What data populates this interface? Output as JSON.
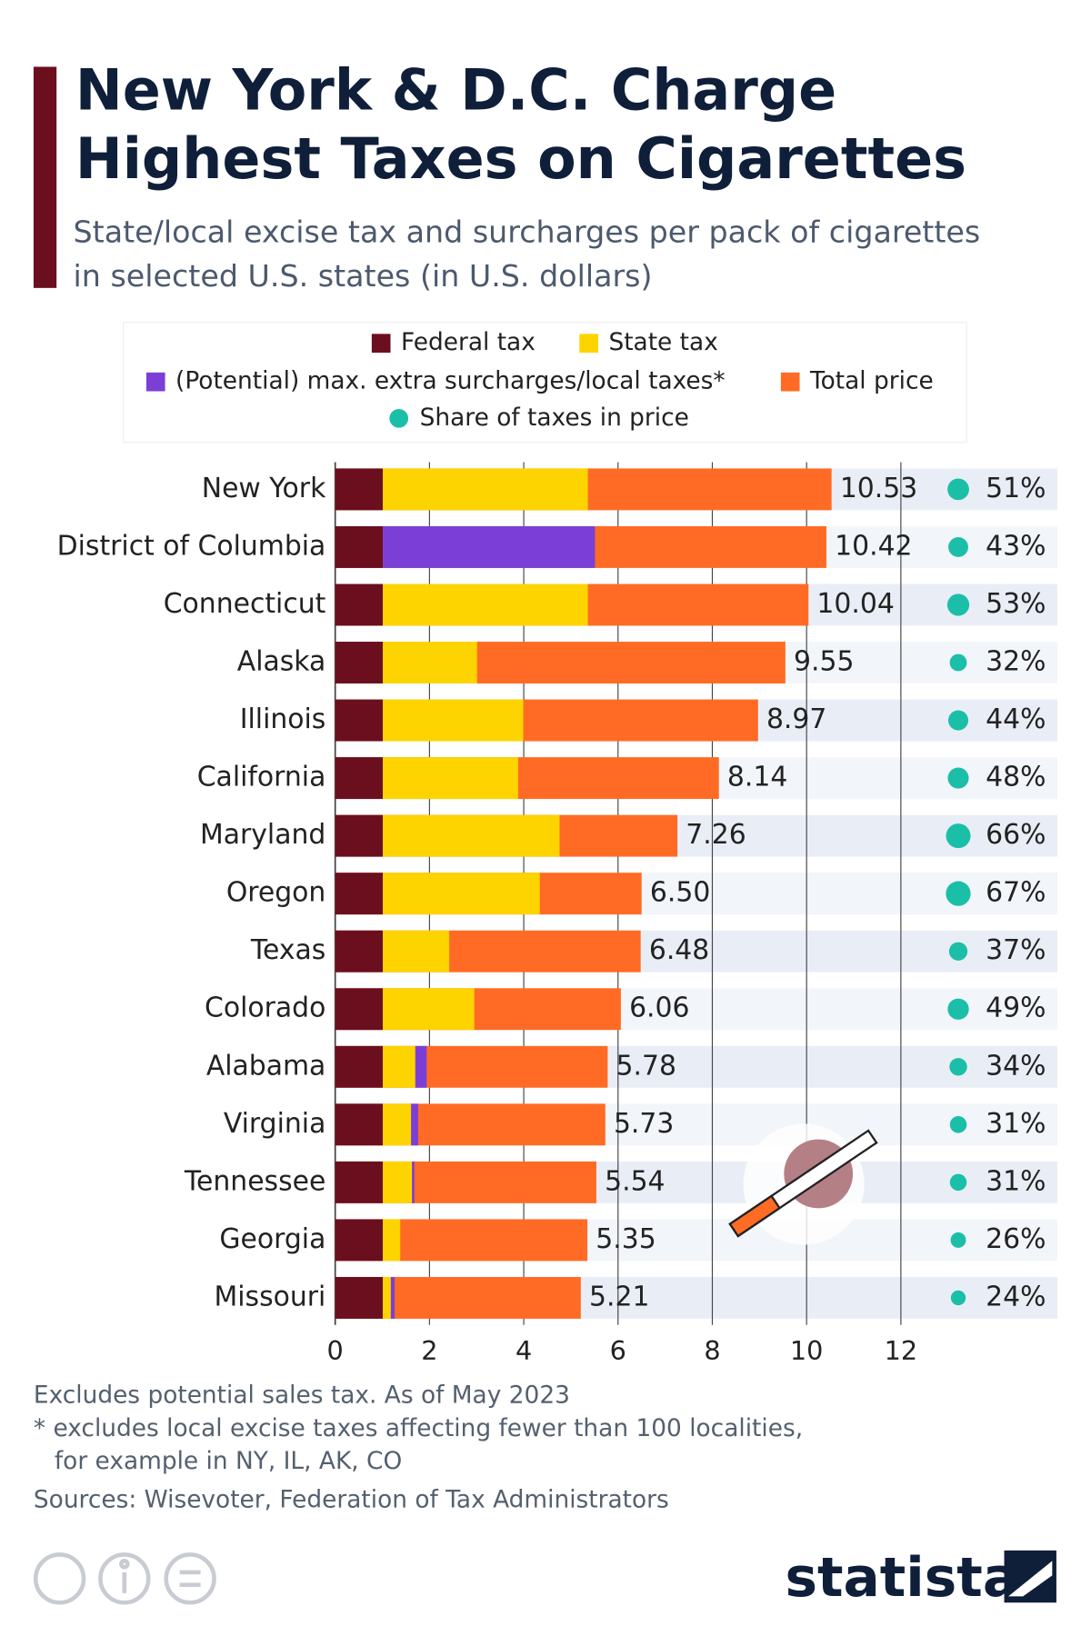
{
  "chart_data": {
    "type": "bar",
    "orientation": "horizontal",
    "title": [
      "New York & D.C. Charge",
      "Highest Taxes on Cigarettes"
    ],
    "subtitle": [
      "State/local excise tax and surcharges per pack of cigarettes",
      "in selected U.S. states (in U.S. dollars)"
    ],
    "categories": [
      "New York",
      "District of Columbia",
      "Connecticut",
      "Alaska",
      "Illinois",
      "California",
      "Maryland",
      "Oregon",
      "Texas",
      "Colorado",
      "Alabama",
      "Virginia",
      "Tennessee",
      "Georgia",
      "Missouri"
    ],
    "series": [
      {
        "name": "Federal tax",
        "color": "#6b0f1f",
        "values": [
          1.01,
          1.01,
          1.01,
          1.01,
          1.01,
          1.01,
          1.01,
          1.01,
          1.01,
          1.01,
          1.01,
          1.01,
          1.01,
          1.01,
          1.01
        ]
      },
      {
        "name": "State tax",
        "color": "#fdd400",
        "values": [
          4.35,
          0,
          4.35,
          2.0,
          2.98,
          2.87,
          3.75,
          3.33,
          1.41,
          1.94,
          0.69,
          0.6,
          0.62,
          0.37,
          0.17
        ]
      },
      {
        "name": "(Potential) max. extra surcharges/local taxes*",
        "color": "#7b3fd8",
        "values": [
          0,
          4.5,
          0,
          0,
          0,
          0,
          0,
          0,
          0,
          0,
          0.24,
          0.15,
          0.05,
          0,
          0.08
        ]
      },
      {
        "name": "Total price",
        "color": "#ff6b24",
        "values": [
          10.53,
          10.42,
          10.04,
          9.55,
          8.97,
          8.14,
          7.26,
          6.5,
          6.48,
          6.06,
          5.78,
          5.73,
          5.54,
          5.35,
          5.21
        ],
        "value_labels": [
          "10.53",
          "10.42",
          "10.04",
          "9.55",
          "8.97",
          "8.14",
          "7.26",
          "6.50",
          "6.48",
          "6.06",
          "5.78",
          "5.73",
          "5.54",
          "5.35",
          "5.21"
        ]
      }
    ],
    "share": {
      "name": "Share of taxes in price",
      "color": "#1bbfa8",
      "values": [
        51,
        43,
        53,
        32,
        44,
        48,
        66,
        67,
        37,
        49,
        34,
        31,
        31,
        26,
        24
      ],
      "value_labels": [
        "51%",
        "43%",
        "53%",
        "32%",
        "44%",
        "48%",
        "66%",
        "67%",
        "37%",
        "49%",
        "34%",
        "31%",
        "31%",
        "26%",
        "24%"
      ]
    },
    "xlim": [
      0,
      12
    ],
    "xticks": [
      0,
      2,
      4,
      6,
      8,
      10,
      12
    ],
    "grid": true,
    "notes": [
      "Excludes potential sales tax. As of May 2023",
      "* excludes local excise taxes affecting fewer than 100 localities,",
      "for example in NY, IL, AK, CO",
      "Sources: Wisevoter, Federation of Tax Administrators"
    ],
    "brand": "statista"
  }
}
